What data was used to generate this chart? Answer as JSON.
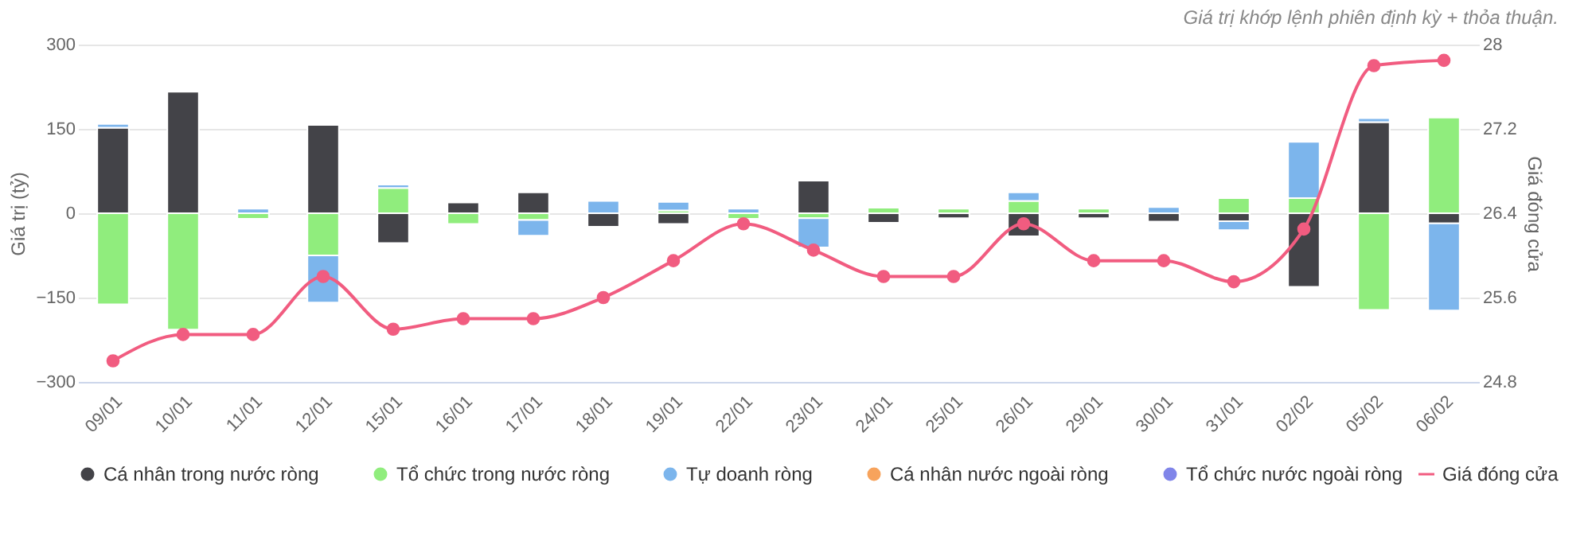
{
  "chart_data": {
    "type": "bar",
    "stacked": true,
    "categories": [
      "09/01",
      "10/01",
      "11/01",
      "12/01",
      "15/01",
      "16/01",
      "17/01",
      "18/01",
      "19/01",
      "22/01",
      "23/01",
      "24/01",
      "25/01",
      "26/01",
      "29/01",
      "30/01",
      "31/01",
      "02/02",
      "05/02",
      "06/02"
    ],
    "series": [
      {
        "name": "Cá nhân trong nước ròng",
        "color": "#434348",
        "values": [
          152,
          216,
          null,
          157,
          -53,
          19,
          37,
          -24,
          -19,
          null,
          58,
          -17,
          -9,
          -41,
          -9,
          -15,
          -14,
          -131,
          162,
          -18
        ]
      },
      {
        "name": "Tổ chức trong nước ròng",
        "color": "#90ed7d",
        "values": [
          -162,
          -207,
          -10,
          -75,
          45,
          -19,
          -12,
          null,
          5,
          -10,
          -9,
          10,
          8,
          22,
          8,
          null,
          27,
          27,
          -172,
          170
        ]
      },
      {
        "name": "Tự doanh ròng",
        "color": "#7cb5ec",
        "values": [
          7,
          null,
          8,
          -84,
          6,
          null,
          -28,
          22,
          15,
          8,
          -52,
          null,
          null,
          15,
          null,
          11,
          -16,
          100,
          7,
          -155
        ]
      },
      {
        "name": "Cá nhân nước ngoài ròng",
        "color": "#f7a35c",
        "values": [
          null,
          null,
          null,
          null,
          null,
          null,
          null,
          null,
          null,
          null,
          null,
          null,
          null,
          null,
          null,
          null,
          null,
          null,
          null,
          null
        ]
      },
      {
        "name": "Tổ chức nước ngoài ròng",
        "color": "#8085e9",
        "values": [
          null,
          null,
          null,
          null,
          null,
          null,
          null,
          null,
          null,
          null,
          null,
          null,
          null,
          null,
          null,
          null,
          null,
          null,
          null,
          null
        ]
      },
      {
        "name": "Giá đóng cửa",
        "color": "#f15c80",
        "type": "line",
        "axis": "y2",
        "values": [
          25.0,
          25.25,
          25.25,
          25.8,
          25.3,
          25.4,
          25.4,
          25.6,
          25.95,
          26.3,
          26.05,
          25.8,
          25.8,
          26.3,
          25.95,
          25.95,
          25.75,
          26.25,
          27.8,
          27.85
        ]
      }
    ],
    "ylabel": "Giá trị (tỷ)",
    "y2label": "Giá đóng cửa",
    "ylim": [
      -300,
      300
    ],
    "yticks": [
      -300,
      -150,
      0,
      150,
      300
    ],
    "y2lim": [
      24.8,
      28
    ],
    "y2ticks": [
      24.8,
      25.6,
      26.4,
      27.2,
      28
    ],
    "annotations": [
      "Giá trị khớp lệnh phiên định kỳ + thỏa thuận."
    ],
    "grid": "y",
    "legend": "bottom",
    "marker": "circle",
    "line_style": "solid"
  }
}
